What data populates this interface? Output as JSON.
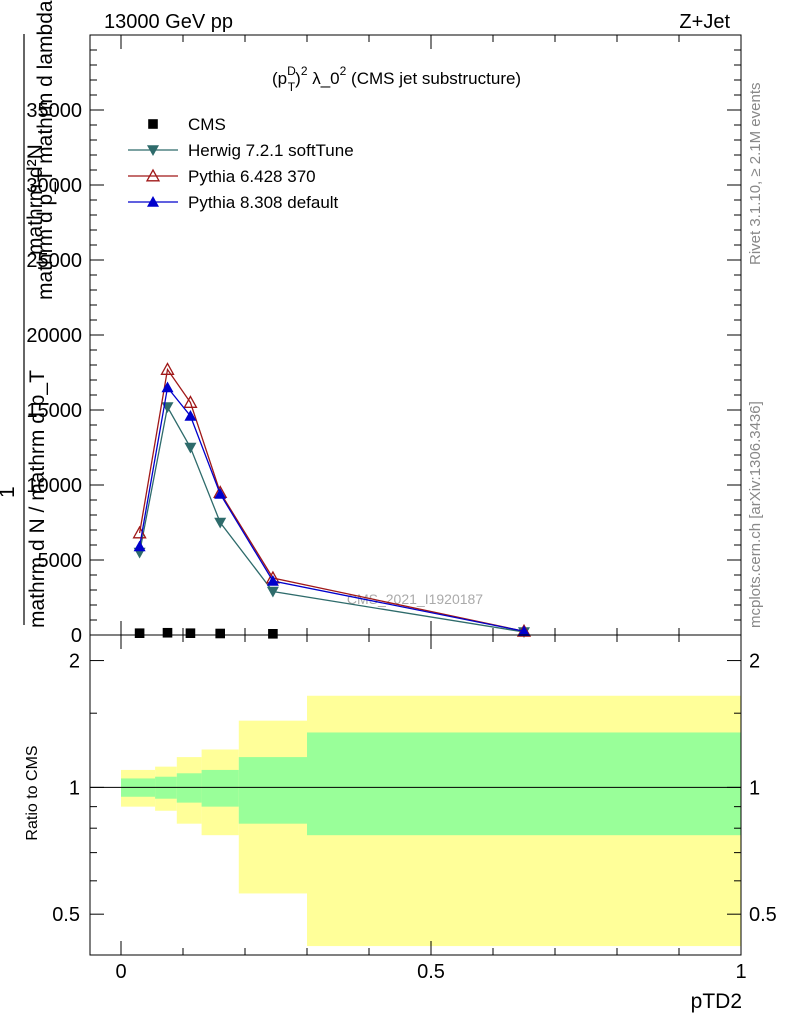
{
  "header": {
    "left": "13000 GeV pp",
    "right": "Z+Jet"
  },
  "side_labels": {
    "rivet": "Rivet 3.1.10, ≥ 2.1M events",
    "mcplots": "mcplots.cern.ch [arXiv:1306.3436]"
  },
  "chart_data": [
    {
      "type": "line",
      "title": "(p_T^D)^2 λ_0^2 (CMS jet substructure)",
      "title_parts": {
        "open": "(p",
        "sup_d": "D",
        "sub_t": "T",
        "close": ")",
        "sup_2": "2",
        "mid": " λ_0",
        "sup_2b": "2",
        "tail": " (CMS jet substructure)"
      },
      "watermark": "CMS_2021_I1920187",
      "ylabel_lines": [
        "mathrm d²N",
        "mathrm d p_T mathrm d lambda",
        "1",
        "mathrm d N / mathrm d p_T"
      ],
      "ylim": [
        0,
        40000
      ],
      "xlim": [
        -0.05,
        1.0
      ],
      "yticks": [
        0,
        5000,
        10000,
        15000,
        20000,
        25000,
        30000,
        35000
      ],
      "ytick_labels": [
        "0",
        "5000",
        "10000",
        "15000",
        "20000",
        "25000",
        "30000",
        "35000"
      ],
      "x": [
        0.03,
        0.075,
        0.112,
        0.16,
        0.245,
        0.65
      ],
      "series": [
        {
          "name": "CMS",
          "color": "#000000",
          "marker": "square",
          "values": [
            120,
            150,
            120,
            100,
            80,
            0
          ]
        },
        {
          "name": "Herwig 7.2.1 softTune",
          "color": "#2e6b6b",
          "marker": "triangle-down",
          "values": [
            5500,
            15200,
            12500,
            7500,
            2900,
            200
          ]
        },
        {
          "name": "Pythia 6.428 370",
          "color": "#a01818",
          "marker": "triangle-up-open",
          "values": [
            6800,
            17700,
            15500,
            9500,
            3800,
            250
          ]
        },
        {
          "name": "Pythia 8.308 default",
          "color": "#0000cc",
          "marker": "triangle-up",
          "values": [
            5900,
            16500,
            14600,
            9400,
            3600,
            250
          ]
        }
      ]
    },
    {
      "type": "area",
      "ylabel": "Ratio to CMS",
      "xlabel": "pTD2",
      "ylim": [
        0.4,
        2.3
      ],
      "xlim": [
        -0.05,
        1.0
      ],
      "xticks": [
        0,
        0.5,
        1
      ],
      "xtick_labels": [
        "0",
        "0.5",
        "1"
      ],
      "yticks": [
        0.5,
        1,
        2
      ],
      "ytick_labels": [
        "0.5",
        "1",
        "2"
      ],
      "reference": 1,
      "bins": [
        {
          "lo": 0.0,
          "hi": 0.055,
          "stat_lo": 0.95,
          "stat_hi": 1.05,
          "tot_lo": 0.9,
          "tot_hi": 1.1
        },
        {
          "lo": 0.055,
          "hi": 0.09,
          "stat_lo": 0.94,
          "stat_hi": 1.06,
          "tot_lo": 0.88,
          "tot_hi": 1.12
        },
        {
          "lo": 0.09,
          "hi": 0.13,
          "stat_lo": 0.92,
          "stat_hi": 1.08,
          "tot_lo": 0.82,
          "tot_hi": 1.18
        },
        {
          "lo": 0.13,
          "hi": 0.19,
          "stat_lo": 0.9,
          "stat_hi": 1.1,
          "tot_lo": 0.77,
          "tot_hi": 1.23
        },
        {
          "lo": 0.19,
          "hi": 0.3,
          "stat_lo": 0.82,
          "stat_hi": 1.18,
          "tot_lo": 0.56,
          "tot_hi": 1.44
        },
        {
          "lo": 0.3,
          "hi": 1.0,
          "stat_lo": 0.77,
          "stat_hi": 1.35,
          "tot_lo": 0.42,
          "tot_hi": 1.65
        }
      ],
      "band_colors": {
        "stat": "#99ff99",
        "total": "#ffff99"
      }
    }
  ]
}
